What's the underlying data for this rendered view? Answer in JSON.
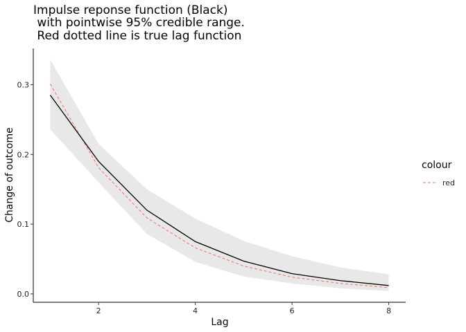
{
  "chart_data": {
    "type": "line",
    "title_lines": [
      "Impulse reponse function (Black)",
      " with pointwise 95% credible range.",
      " Red dotted line is true lag function"
    ],
    "xlabel": "Lag",
    "ylabel": "Change of outcome",
    "xlim": [
      0.65,
      8.35
    ],
    "ylim": [
      -0.012,
      0.352
    ],
    "x_ticks": [
      2,
      4,
      6,
      8
    ],
    "x_tick_labels": [
      "2",
      "4",
      "6",
      "8"
    ],
    "y_ticks": [
      0.0,
      0.1,
      0.2,
      0.3
    ],
    "y_tick_labels": [
      "0.0",
      "0.1",
      "0.2",
      "0.3"
    ],
    "grid": false,
    "legend": {
      "title": "colour",
      "placement": "right",
      "entries": [
        {
          "label": "red",
          "color": "#f8766d",
          "linetype": "dashed"
        }
      ]
    },
    "x": [
      1,
      2,
      3,
      4,
      5,
      6,
      7,
      8
    ],
    "series": [
      {
        "role": "estimate",
        "color": "#000000",
        "linetype": "solid",
        "values": [
          0.285,
          0.19,
          0.12,
          0.075,
          0.047,
          0.029,
          0.019,
          0.012
        ]
      },
      {
        "role": "true",
        "color": "#f8766d",
        "linetype": "dashed",
        "values": [
          0.301,
          0.181,
          0.109,
          0.066,
          0.04,
          0.024,
          0.015,
          0.009
        ]
      }
    ],
    "ribbon": {
      "color": "#e8e8e8",
      "lower": [
        0.236,
        0.16,
        0.086,
        0.046,
        0.025,
        0.015,
        0.008,
        0.004
      ],
      "upper": [
        0.336,
        0.215,
        0.15,
        0.108,
        0.076,
        0.054,
        0.038,
        0.028
      ]
    }
  }
}
